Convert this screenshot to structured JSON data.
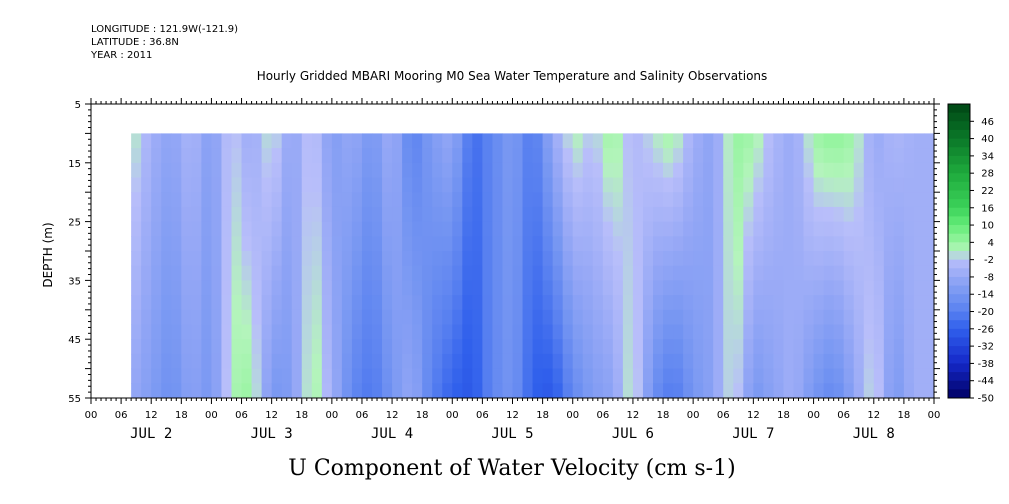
{
  "header": {
    "longitude": "LONGITUDE : 121.9W(-121.9)",
    "latitude": "LATITUDE : 36.8N",
    "year": "YEAR : 2011"
  },
  "chart_data": {
    "type": "heatmap",
    "title": "Hourly Gridded MBARI Mooring M0 Sea Water Temperature and Salinity Observations",
    "xlabel": "U Component of Water Velocity (cm s-1)",
    "ylabel": "DEPTH (m)",
    "ylim": [
      55,
      5
    ],
    "y_ticks": [
      5,
      15,
      25,
      35,
      45,
      55
    ],
    "data_depth_range": [
      10,
      55
    ],
    "x_hour_ticks": [
      "00",
      "06",
      "12",
      "18",
      "00",
      "06",
      "12",
      "18",
      "00",
      "06",
      "12",
      "18",
      "00",
      "06",
      "12",
      "18",
      "00",
      "06",
      "12",
      "18",
      "00",
      "06",
      "12",
      "18",
      "00",
      "06",
      "12",
      "18",
      "00"
    ],
    "x_day_labels": [
      "JUL 2",
      "JUL 3",
      "JUL 4",
      "JUL 5",
      "JUL 6",
      "JUL 7",
      "JUL 8"
    ],
    "x_range_hours": [
      0,
      168
    ],
    "data_time_start_hour": 8,
    "colorbar": {
      "labels": [
        "46",
        "40",
        "34",
        "28",
        "22",
        "16",
        "10",
        "4",
        "-2",
        "-8",
        "-14",
        "-20",
        "-26",
        "-32",
        "-38",
        "-44",
        "-50"
      ],
      "range": [
        -50,
        52
      ],
      "step": 3
    },
    "u_velocity_profile": {
      "time_hours": [
        8,
        12,
        16,
        20,
        24,
        28,
        32,
        36,
        40,
        44,
        48,
        52,
        56,
        60,
        64,
        68,
        72,
        76,
        80,
        84,
        88,
        92,
        96,
        100,
        104,
        108,
        112,
        116,
        120,
        124,
        128,
        132,
        136,
        140,
        144,
        148,
        152,
        156,
        160,
        164,
        168
      ],
      "surface_cm_s": [
        2,
        -6,
        -10,
        -4,
        -12,
        0,
        -8,
        2,
        -10,
        0,
        -12,
        -8,
        -14,
        -6,
        -20,
        -12,
        -8,
        -24,
        -18,
        -12,
        -22,
        -8,
        2,
        -2,
        4,
        -4,
        0,
        3,
        -6,
        -10,
        4,
        3,
        -4,
        -8,
        3,
        5,
        3,
        -8,
        -4,
        -6,
        -6
      ],
      "bottom_cm_s": [
        -8,
        -12,
        -16,
        -10,
        -14,
        2,
        4,
        -14,
        -12,
        4,
        -6,
        -18,
        -22,
        -14,
        -8,
        -20,
        -26,
        -28,
        -18,
        -14,
        -26,
        -28,
        -18,
        -12,
        -10,
        3,
        -16,
        -22,
        -14,
        -10,
        2,
        -14,
        -10,
        -6,
        -14,
        -18,
        -10,
        2,
        -14,
        -6,
        -6
      ]
    }
  }
}
